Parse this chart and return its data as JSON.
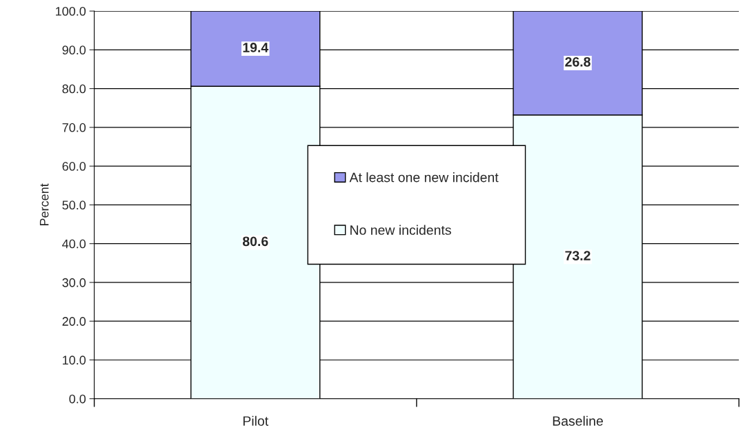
{
  "chart_data": {
    "type": "bar",
    "stacked": true,
    "ylabel": "Percent",
    "categories": [
      "Pilot",
      "Baseline"
    ],
    "series": [
      {
        "name": "No new incidents",
        "color": "#f0ffff",
        "values": [
          80.6,
          73.2
        ]
      },
      {
        "name": "At least one new incident",
        "color": "#9999ee",
        "values": [
          19.4,
          26.8
        ]
      }
    ],
    "data_labels": true,
    "ylim": [
      0,
      100
    ],
    "yticks": [
      {
        "value": 0,
        "label": "0.0"
      },
      {
        "value": 10,
        "label": "10.0"
      },
      {
        "value": 20,
        "label": "20.0"
      },
      {
        "value": 30,
        "label": "30.0"
      },
      {
        "value": 40,
        "label": "40.0"
      },
      {
        "value": 50,
        "label": "50.0"
      },
      {
        "value": 60,
        "label": "60.0"
      },
      {
        "value": 70,
        "label": "70.0"
      },
      {
        "value": 80,
        "label": "80.0"
      },
      {
        "value": 90,
        "label": "90.0"
      },
      {
        "value": 100,
        "label": "100.0"
      }
    ],
    "grid": "y",
    "legend": "center"
  }
}
